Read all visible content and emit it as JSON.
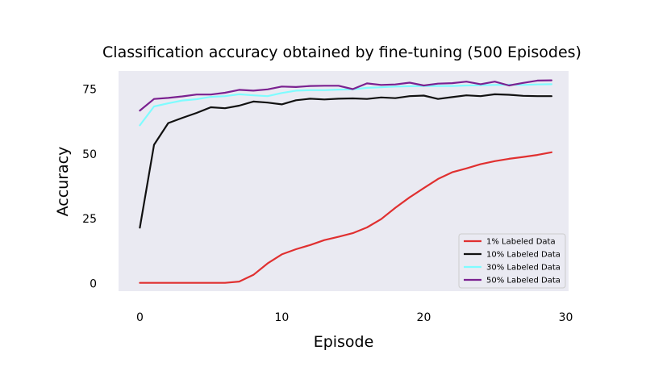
{
  "chart_data": {
    "type": "line",
    "title": "Classification accuracy obtained by fine-tuning (500 Episodes)",
    "xlabel": "Episode",
    "ylabel": "Accuracy",
    "xlim": [
      -1.5,
      30.2
    ],
    "ylim": [
      -3,
      82
    ],
    "xticks": [
      0,
      10,
      20,
      30
    ],
    "yticks": [
      0,
      25,
      50,
      75
    ],
    "grid": false,
    "legend": "lower-right",
    "x": [
      0,
      1,
      2,
      3,
      4,
      5,
      6,
      7,
      8,
      9,
      10,
      11,
      12,
      13,
      14,
      15,
      16,
      17,
      18,
      19,
      20,
      21,
      22,
      23,
      24,
      25,
      26,
      27,
      28,
      29
    ],
    "series": [
      {
        "name": "1% Labeled Data",
        "color": "#e03030",
        "values": [
          0.2,
          0.2,
          0.2,
          0.2,
          0.2,
          0.2,
          0.2,
          0.7,
          3.3,
          7.7,
          11.2,
          13.2,
          14.8,
          16.7,
          18.0,
          19.4,
          21.6,
          24.8,
          29.2,
          33.2,
          36.8,
          40.3,
          42.9,
          44.4,
          46.0,
          47.2,
          48.1,
          48.8,
          49.6,
          50.6
        ]
      },
      {
        "name": "10% Labeled Data",
        "color": "#111111",
        "values": [
          21.5,
          53.5,
          61.9,
          63.9,
          65.8,
          68.0,
          67.6,
          68.6,
          70.2,
          69.8,
          69.1,
          70.7,
          71.3,
          71.0,
          71.3,
          71.4,
          71.2,
          71.8,
          71.5,
          72.3,
          72.5,
          71.2,
          71.9,
          72.6,
          72.3,
          73.0,
          72.8,
          72.4,
          72.3,
          72.3
        ]
      },
      {
        "name": "30% Labeled Data",
        "color": "#7ffcff",
        "values": [
          61.0,
          68.3,
          69.5,
          70.6,
          71.1,
          72.0,
          72.3,
          73.0,
          72.6,
          72.3,
          73.5,
          74.4,
          74.6,
          74.6,
          74.8,
          74.9,
          75.5,
          75.7,
          76.0,
          76.1,
          76.2,
          76.2,
          76.2,
          76.4,
          76.5,
          76.6,
          76.7,
          76.6,
          76.8,
          76.9
        ]
      },
      {
        "name": "50% Labeled Data",
        "color": "#7b2190",
        "values": [
          66.7,
          71.2,
          71.6,
          72.2,
          72.9,
          72.9,
          73.6,
          74.7,
          74.4,
          74.9,
          76.0,
          75.8,
          76.2,
          76.3,
          76.3,
          75.0,
          77.2,
          76.6,
          76.8,
          77.5,
          76.4,
          77.1,
          77.3,
          77.9,
          76.9,
          77.9,
          76.4,
          77.4,
          78.3,
          78.4
        ]
      }
    ]
  }
}
